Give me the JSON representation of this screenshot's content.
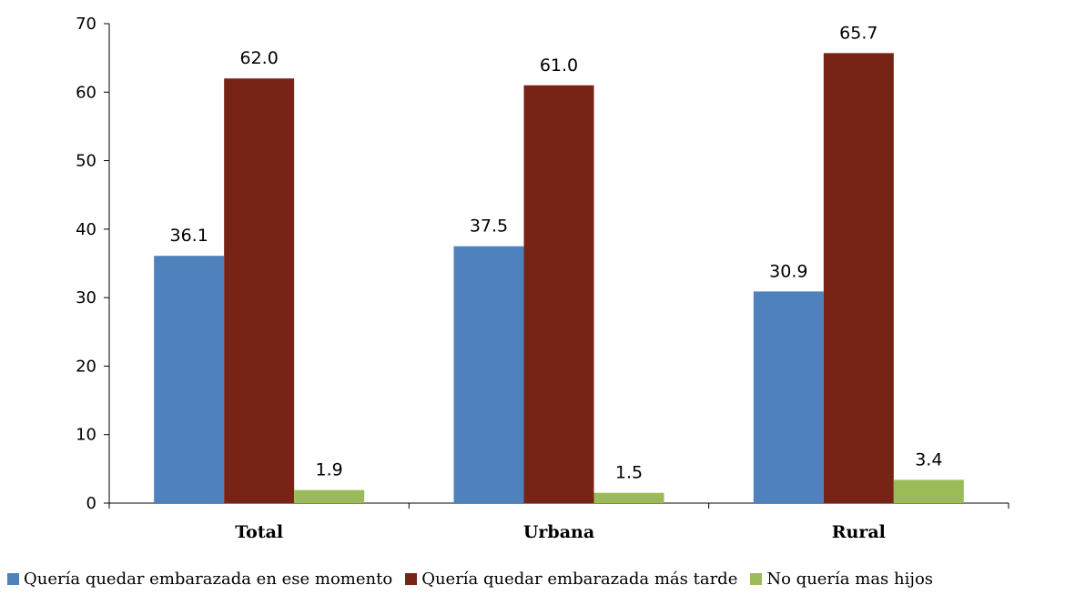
{
  "chart_data": {
    "type": "bar",
    "categories": [
      "Total",
      "Urbana",
      "Rural"
    ],
    "series": [
      {
        "name": "Quería quedar embarazada en ese momento",
        "color": "#4f81bd",
        "values": [
          36.1,
          37.5,
          30.9
        ],
        "labels": [
          "36.1",
          "37.5",
          "30.9"
        ]
      },
      {
        "name": "Quería quedar embarazada más tarde",
        "color": "#772316",
        "values": [
          62.0,
          61.0,
          65.7
        ],
        "labels": [
          "62.0",
          "61.0",
          "65.7"
        ]
      },
      {
        "name": "No quería mas hijos",
        "color": "#9bbb59",
        "values": [
          1.9,
          1.5,
          3.4
        ],
        "labels": [
          "1.9",
          "1.5",
          "3.4"
        ]
      }
    ],
    "ylim": [
      0,
      70
    ],
    "yticks": [
      0,
      10,
      20,
      30,
      40,
      50,
      60,
      70
    ],
    "ytick_labels": [
      "0",
      "10",
      "20",
      "30",
      "40",
      "50",
      "60",
      "70"
    ],
    "grid": false,
    "legend_position": "bottom"
  }
}
